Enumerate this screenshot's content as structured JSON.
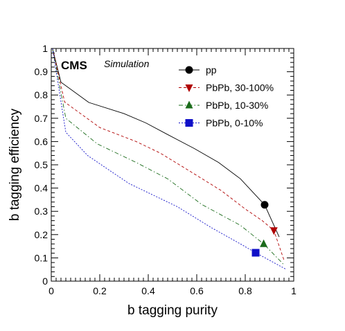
{
  "chart_data": {
    "type": "line",
    "xlabel": "b tagging purity",
    "ylabel": "b tagging efficiency",
    "xlim": [
      0,
      1
    ],
    "ylim": [
      0,
      1
    ],
    "x_ticks": [
      "0",
      "0.2",
      "0.4",
      "0.6",
      "0.8",
      "1"
    ],
    "y_ticks": [
      "0",
      "0.1",
      "0.2",
      "0.3",
      "0.4",
      "0.5",
      "0.6",
      "0.7",
      "0.8",
      "0.9",
      "1"
    ],
    "experiment_label": "CMS",
    "sub_label": "Simulation",
    "legend_position": "top-right",
    "grid": false,
    "series": [
      {
        "name": "pp",
        "color": "#000000",
        "dash": "solid",
        "marker": "circle",
        "marker_point": [
          0.88,
          0.328
        ],
        "x": [
          0.005,
          0.04,
          0.155,
          0.3,
          0.39,
          0.48,
          0.59,
          0.69,
          0.78,
          0.88,
          0.94
        ],
        "y": [
          1.0,
          0.855,
          0.768,
          0.72,
          0.68,
          0.63,
          0.57,
          0.51,
          0.44,
          0.328,
          0.19
        ]
      },
      {
        "name": "PbPb, 30-100%",
        "color": "#b00000",
        "dash": "dashed",
        "marker": "triangle-down",
        "marker_point": [
          0.918,
          0.218
        ],
        "x": [
          0.005,
          0.055,
          0.2,
          0.35,
          0.45,
          0.56,
          0.7,
          0.8,
          0.87,
          0.918,
          0.96
        ],
        "y": [
          1.0,
          0.77,
          0.66,
          0.6,
          0.55,
          0.48,
          0.39,
          0.31,
          0.26,
          0.218,
          0.09
        ]
      },
      {
        "name": "PbPb, 10-30%",
        "color": "#1a6b1a",
        "dash": "dash-dot",
        "marker": "triangle-up",
        "marker_point": [
          0.876,
          0.16
        ],
        "x": [
          0.005,
          0.06,
          0.19,
          0.35,
          0.48,
          0.62,
          0.78,
          0.876,
          0.96
        ],
        "y": [
          1.0,
          0.7,
          0.59,
          0.51,
          0.44,
          0.33,
          0.24,
          0.16,
          0.07
        ]
      },
      {
        "name": "PbPb, 0-10%",
        "color": "#1010c8",
        "dash": "dotted",
        "marker": "square",
        "marker_point": [
          0.843,
          0.122
        ],
        "x": [
          0.005,
          0.06,
          0.15,
          0.32,
          0.52,
          0.66,
          0.78,
          0.843,
          0.97
        ],
        "y": [
          1.0,
          0.64,
          0.54,
          0.42,
          0.32,
          0.23,
          0.16,
          0.122,
          0.05
        ]
      }
    ]
  }
}
